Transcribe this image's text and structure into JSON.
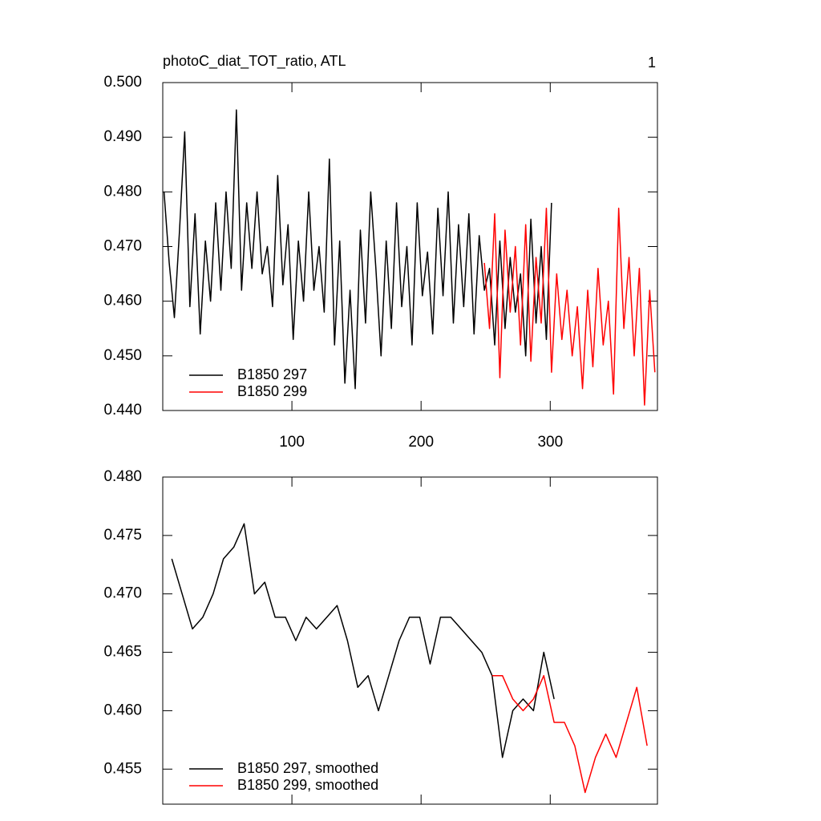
{
  "chart_data": [
    {
      "type": "line",
      "title": "photoC_diat_TOT_ratio, ATL",
      "corner_label": "1",
      "xlim": [
        0,
        383
      ],
      "xticks": [
        100,
        200,
        300
      ],
      "xtick_labels": true,
      "ylim": [
        0.44,
        0.5
      ],
      "yticks": [
        {
          "value": 0.44,
          "label": "0.440"
        },
        {
          "value": 0.45,
          "label": "0.450"
        },
        {
          "value": 0.46,
          "label": "0.460"
        },
        {
          "value": 0.47,
          "label": "0.470"
        },
        {
          "value": 0.48,
          "label": "0.480"
        },
        {
          "value": 0.49,
          "label": "0.490"
        },
        {
          "value": 0.5,
          "label": "0.500"
        }
      ],
      "legend": "lower left",
      "series": [
        {
          "name": "B1850 297",
          "color": "#000000",
          "x": [
            1,
            5,
            9,
            13,
            17,
            21,
            25,
            29,
            33,
            37,
            41,
            45,
            49,
            53,
            57,
            61,
            65,
            69,
            73,
            77,
            81,
            85,
            89,
            93,
            97,
            101,
            105,
            109,
            113,
            117,
            121,
            125,
            129,
            133,
            137,
            141,
            145,
            149,
            153,
            157,
            161,
            165,
            169,
            173,
            177,
            181,
            185,
            189,
            193,
            197,
            201,
            205,
            209,
            213,
            217,
            221,
            225,
            229,
            233,
            237,
            241,
            245,
            249,
            253,
            257,
            261,
            265,
            269,
            273,
            277,
            281,
            285,
            289,
            293,
            297,
            301
          ],
          "values": [
            0.48,
            0.467,
            0.457,
            0.473,
            0.491,
            0.459,
            0.476,
            0.454,
            0.471,
            0.46,
            0.478,
            0.462,
            0.48,
            0.466,
            0.495,
            0.462,
            0.478,
            0.466,
            0.48,
            0.465,
            0.47,
            0.459,
            0.483,
            0.463,
            0.474,
            0.453,
            0.471,
            0.46,
            0.48,
            0.462,
            0.47,
            0.458,
            0.486,
            0.452,
            0.471,
            0.445,
            0.462,
            0.444,
            0.473,
            0.456,
            0.48,
            0.466,
            0.45,
            0.471,
            0.455,
            0.478,
            0.459,
            0.47,
            0.452,
            0.478,
            0.461,
            0.469,
            0.454,
            0.477,
            0.461,
            0.48,
            0.456,
            0.474,
            0.459,
            0.476,
            0.454,
            0.472,
            0.462,
            0.466,
            0.452,
            0.471,
            0.455,
            0.468,
            0.458,
            0.465,
            0.45,
            0.475,
            0.456,
            0.47,
            0.453,
            0.478
          ]
        },
        {
          "name": "B1850 299",
          "color": "#ff0000",
          "x": [
            249,
            253,
            257,
            261,
            265,
            269,
            273,
            277,
            281,
            285,
            289,
            293,
            297,
            301,
            305,
            309,
            313,
            317,
            321,
            325,
            329,
            333,
            337,
            341,
            345,
            349,
            353,
            357,
            361,
            365,
            369,
            373,
            377,
            381
          ],
          "values": [
            0.467,
            0.455,
            0.476,
            0.446,
            0.473,
            0.458,
            0.47,
            0.452,
            0.474,
            0.449,
            0.468,
            0.456,
            0.477,
            0.447,
            0.465,
            0.453,
            0.462,
            0.45,
            0.459,
            0.444,
            0.462,
            0.448,
            0.466,
            0.452,
            0.46,
            0.443,
            0.477,
            0.455,
            0.468,
            0.45,
            0.466,
            0.441,
            0.462,
            0.447
          ]
        }
      ]
    },
    {
      "type": "line",
      "xlim": [
        0,
        383
      ],
      "xticks": [
        100,
        200,
        300
      ],
      "xtick_labels": false,
      "ylim": [
        0.452,
        0.48
      ],
      "yticks": [
        {
          "value": 0.455,
          "label": "0.455"
        },
        {
          "value": 0.46,
          "label": "0.460"
        },
        {
          "value": 0.465,
          "label": "0.465"
        },
        {
          "value": 0.47,
          "label": "0.470"
        },
        {
          "value": 0.475,
          "label": "0.475"
        },
        {
          "value": 0.48,
          "label": "0.480"
        }
      ],
      "legend": "lower left",
      "series": [
        {
          "name": "B1850 297, smoothed",
          "color": "#000000",
          "x": [
            7,
            15,
            23,
            31,
            39,
            47,
            55,
            63,
            71,
            79,
            87,
            95,
            103,
            111,
            119,
            127,
            135,
            143,
            151,
            159,
            167,
            175,
            183,
            191,
            199,
            207,
            215,
            223,
            231,
            239,
            247,
            255,
            263,
            271,
            279,
            287,
            295,
            303
          ],
          "values": [
            0.473,
            0.47,
            0.467,
            0.468,
            0.47,
            0.473,
            0.474,
            0.476,
            0.47,
            0.471,
            0.468,
            0.468,
            0.466,
            0.468,
            0.467,
            0.468,
            0.469,
            0.466,
            0.462,
            0.463,
            0.46,
            0.463,
            0.466,
            0.468,
            0.468,
            0.464,
            0.468,
            0.468,
            0.467,
            0.466,
            0.465,
            0.463,
            0.456,
            0.46,
            0.461,
            0.46,
            0.465,
            0.461
          ]
        },
        {
          "name": "B1850 299, smoothed",
          "color": "#ff0000",
          "x": [
            255,
            263,
            271,
            279,
            287,
            295,
            303,
            311,
            319,
            327,
            335,
            343,
            351,
            359,
            367,
            375
          ],
          "values": [
            0.463,
            0.463,
            0.461,
            0.46,
            0.461,
            0.463,
            0.459,
            0.459,
            0.457,
            0.453,
            0.456,
            0.458,
            0.456,
            0.459,
            0.462,
            0.457
          ]
        }
      ]
    }
  ]
}
